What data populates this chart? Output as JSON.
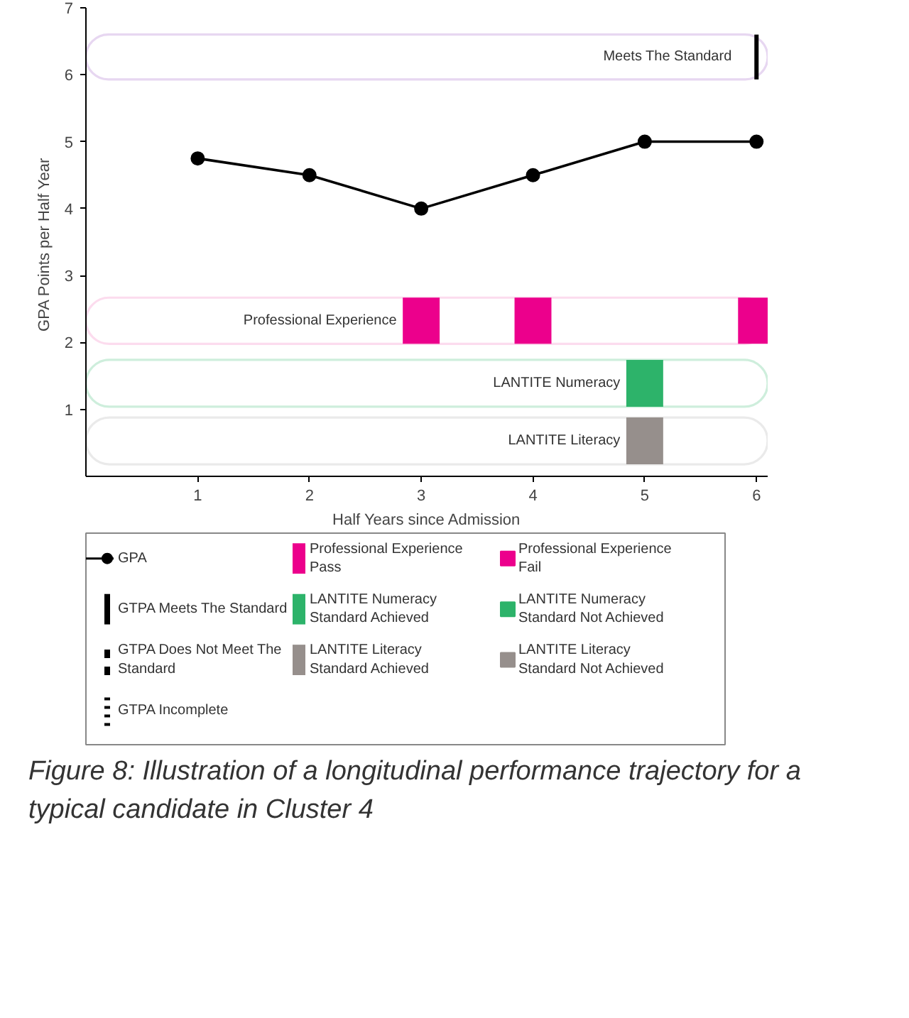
{
  "chart_data": {
    "type": "line",
    "xlabel": "Half Years since Admission",
    "ylabel": "GPA  Points per Half Year",
    "xlim": [
      0,
      6.1
    ],
    "ylim": [
      0,
      7
    ],
    "xticks": [
      1,
      2,
      3,
      4,
      5,
      6
    ],
    "yticks": [
      1,
      2,
      3,
      4,
      5,
      6,
      7
    ],
    "grid": false,
    "legend": "bottom",
    "marker": "none",
    "series": [
      {
        "name": "GPA",
        "color": "#000000",
        "marker": "circle",
        "line_style": "solid",
        "x": [
          1,
          2,
          3,
          4,
          5,
          6
        ],
        "values": [
          4.75,
          4.5,
          4,
          4.5,
          5,
          5
        ]
      },
      {
        "name": "GTPA Meets The Standard",
        "color": "#000000",
        "line_style": "solid",
        "x": [
          6,
          6
        ],
        "values": [
          5.93,
          6.6
        ]
      },
      {
        "name": "GTPA Does Not Meet The Standard",
        "color": "#000000",
        "line_style": "dashed"
      },
      {
        "name": "GTPA Incomplete",
        "color": "#000000",
        "line_style": "dotted"
      },
      {
        "name": "Professional Experience Pass",
        "type": "bar",
        "color": "#ec008c",
        "x": [
          3,
          4,
          6
        ],
        "base": [
          1.98,
          1.98,
          1.98
        ],
        "values": [
          0.69,
          0.69,
          0.69
        ]
      },
      {
        "name": "LANTITE Numeracy Standard Achieved",
        "type": "bar",
        "color": "#2db36a",
        "x": [
          5
        ],
        "base": [
          1.04
        ],
        "values": [
          0.7
        ]
      },
      {
        "name": "LANTITE Literacy Standard Achieved",
        "type": "bar",
        "color": "#968f8c",
        "x": [
          5
        ],
        "base": [
          0.18
        ],
        "values": [
          0.7
        ]
      },
      {
        "name": "Professional Experience Fail",
        "type": "bar",
        "color": "#ec008c"
      },
      {
        "name": "LANTITE Numeracy Standard Not Achieved",
        "type": "bar",
        "color": "#2db36a"
      },
      {
        "name": "LANTITE Literacy Standard Not Achieved",
        "type": "bar",
        "color": "#968f8c"
      }
    ],
    "bands": [
      {
        "axis": "y",
        "from": 5.93,
        "to": 6.6,
        "label": "Meets The Standard",
        "color": "#b07cd0"
      },
      {
        "axis": "y",
        "from": 1.98,
        "to": 2.67,
        "label": "Professional Experience",
        "color": "#f48cc8"
      },
      {
        "axis": "y",
        "from": 1.04,
        "to": 1.74,
        "label": "LANTITE Numeracy",
        "color": "#5cc88a"
      },
      {
        "axis": "y",
        "from": 0.18,
        "to": 0.88,
        "label": "LANTITE Literacy",
        "color": "#bbbbbb"
      }
    ],
    "annotations": [
      "Figure 8: Illustration of a longitudinal performance trajectory for a typical candidate in Cluster 4"
    ]
  }
}
